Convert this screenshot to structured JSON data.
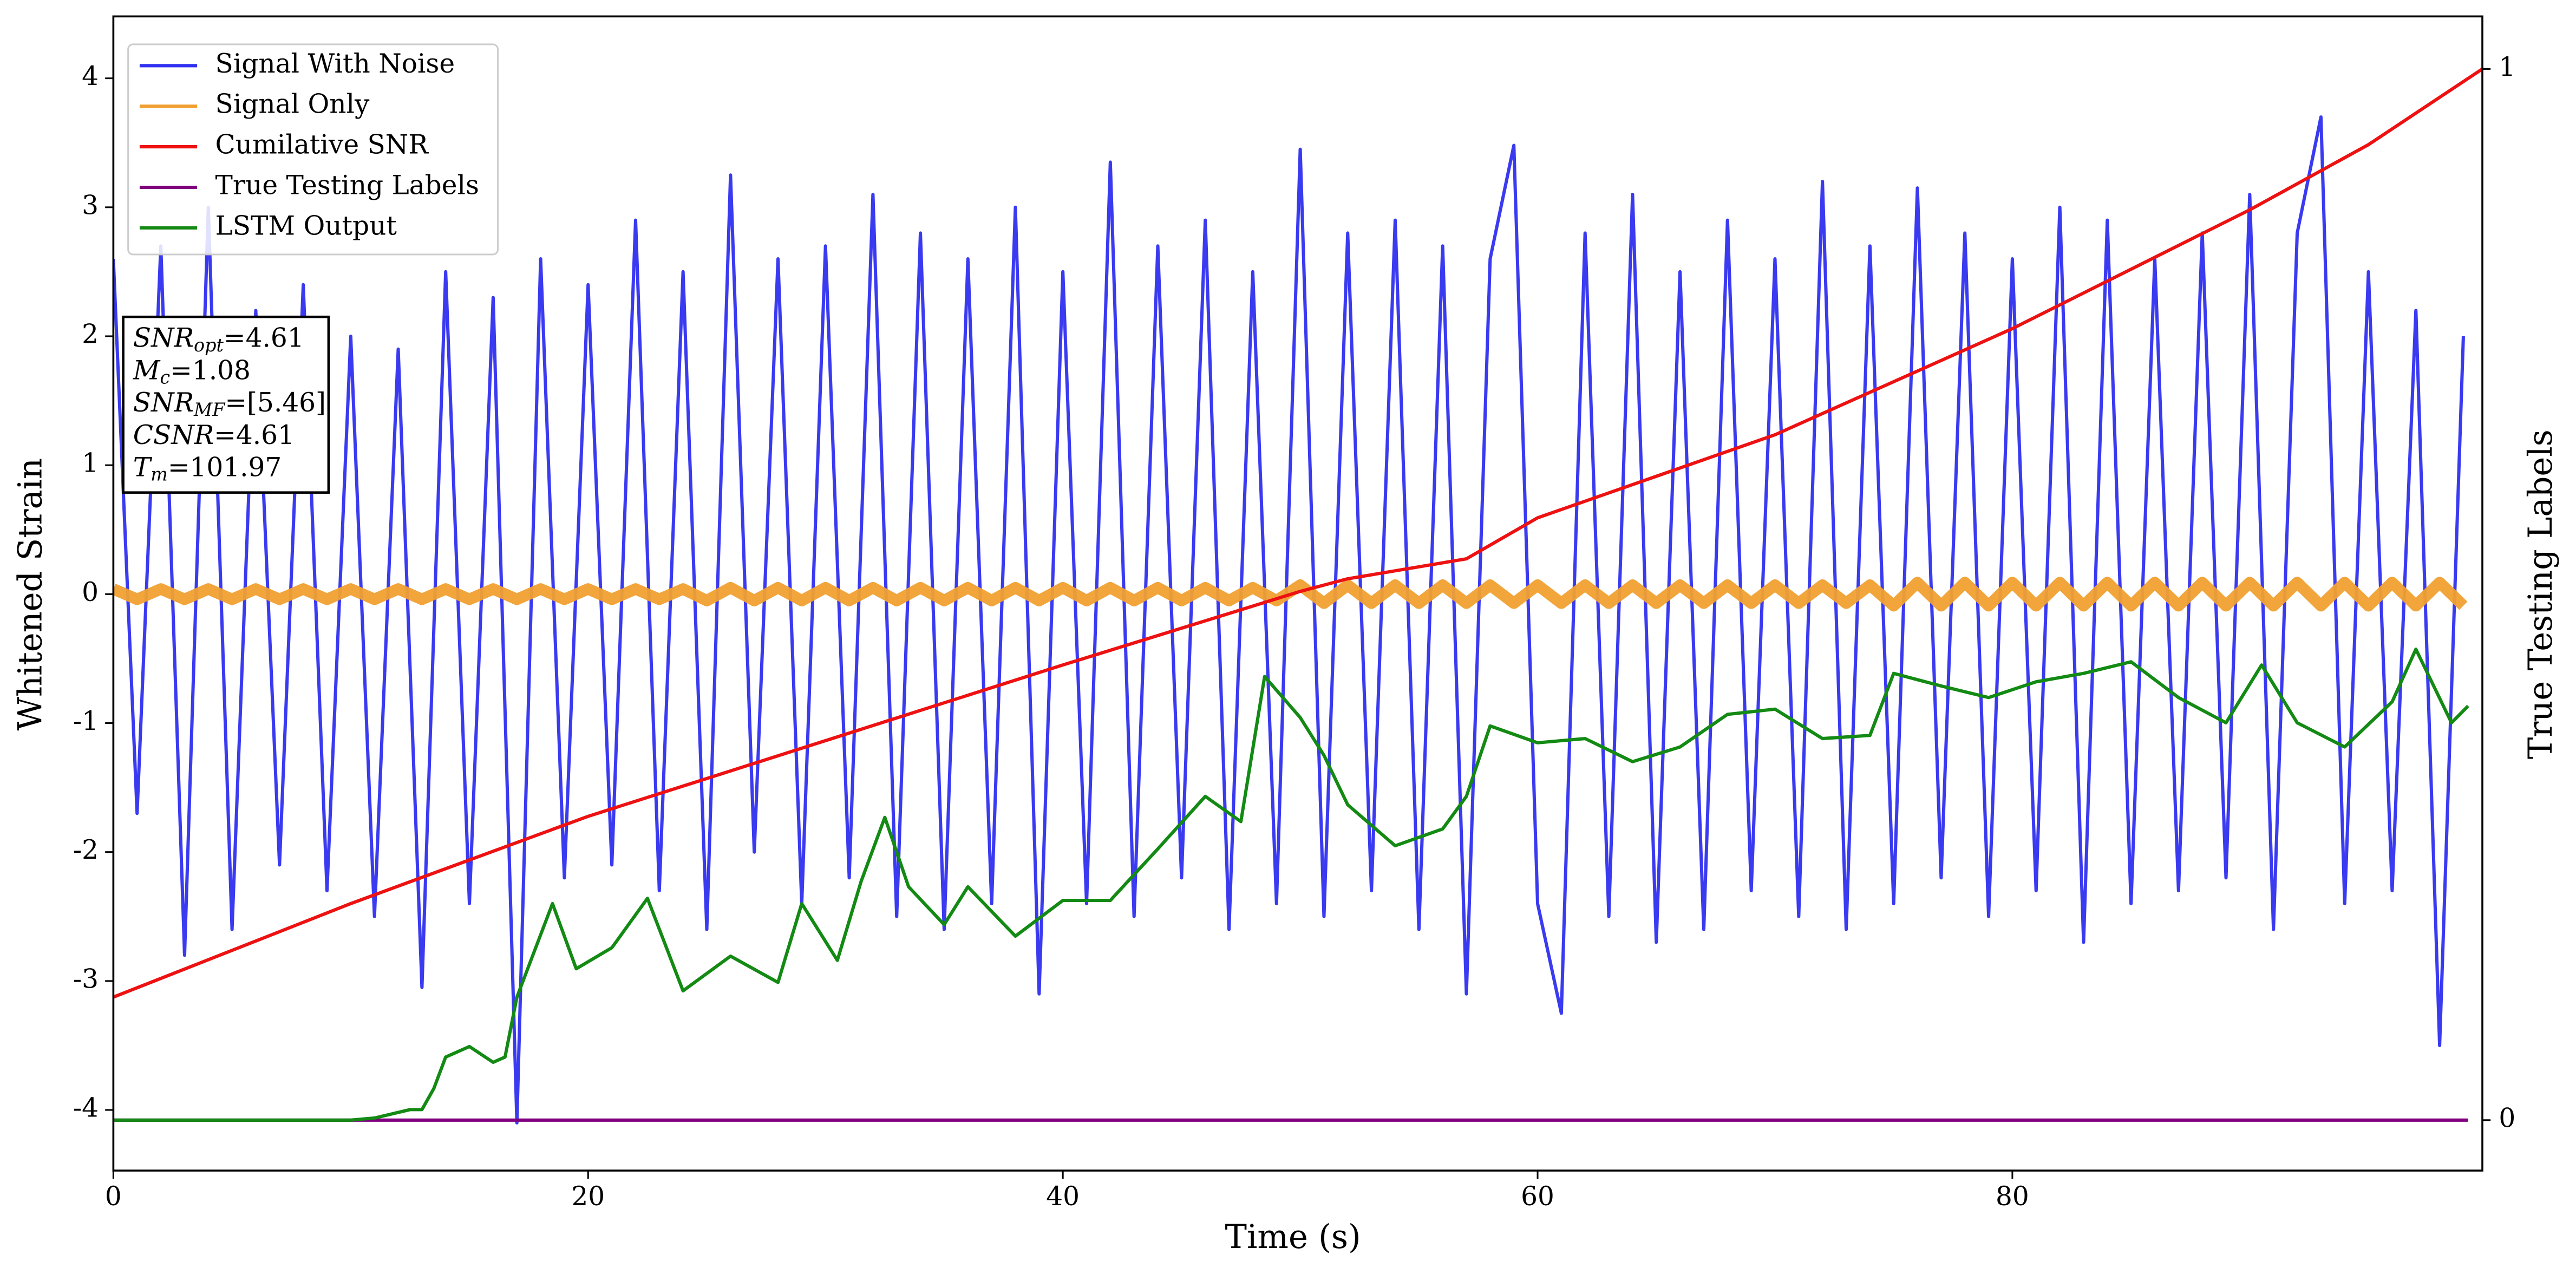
{
  "chart_data": {
    "type": "line",
    "xlabel": "Time (s)",
    "ylabel": "Whitened Strain",
    "y2label": "True Testing Labels",
    "xlim": [
      0,
      99.8
    ],
    "ylim": [
      -4.47,
      4.48
    ],
    "y2lim": [
      -0.048,
      1.05
    ],
    "xticks": [
      0,
      20,
      40,
      60,
      80
    ],
    "yticks": [
      -4,
      -3,
      -2,
      -1,
      0,
      1,
      2,
      3,
      4
    ],
    "y2ticks": [
      0,
      1
    ],
    "legend": "upper left",
    "x": [
      0,
      1,
      2,
      3,
      4,
      5,
      6,
      7,
      8,
      9,
      10,
      11,
      12,
      13,
      14,
      15,
      16,
      17,
      18,
      19,
      20,
      21,
      22,
      23,
      24,
      25,
      26,
      27,
      28,
      29,
      30,
      31,
      32,
      33,
      34,
      35,
      36,
      37,
      38,
      39,
      40,
      41,
      42,
      43,
      44,
      45,
      46,
      47,
      48,
      49,
      50,
      51,
      52,
      53,
      54,
      55,
      56,
      57,
      58,
      59,
      60,
      61,
      62,
      63,
      64,
      65,
      66,
      67,
      68,
      69,
      70,
      71,
      72,
      73,
      74,
      75,
      76,
      77,
      78,
      79,
      80,
      81,
      82,
      83,
      84,
      85,
      86,
      87,
      88,
      89,
      90,
      91,
      92,
      93,
      94,
      95,
      96,
      97,
      98,
      99
    ],
    "series": [
      {
        "name": "Signal With Noise",
        "color": "#2f2ff0",
        "values": [
          2.6,
          -1.7,
          2.7,
          -2.8,
          3.0,
          -2.6,
          2.2,
          -2.1,
          2.4,
          -2.3,
          2.0,
          -2.5,
          1.9,
          -3.05,
          2.5,
          -2.4,
          2.3,
          -4.1,
          2.6,
          -2.2,
          2.4,
          -2.1,
          2.9,
          -2.3,
          2.5,
          -2.6,
          3.25,
          -2.0,
          2.6,
          -2.4,
          2.7,
          -2.2,
          3.1,
          -2.5,
          2.8,
          -2.6,
          2.6,
          -2.4,
          3.0,
          -3.1,
          2.5,
          -2.4,
          3.35,
          -2.5,
          2.7,
          -2.2,
          2.9,
          -2.6,
          2.5,
          -2.4,
          3.45,
          -2.5,
          2.8,
          -2.3,
          2.9,
          -2.6,
          2.7,
          -3.1,
          2.6,
          3.48,
          -2.4,
          -3.25,
          2.8,
          -2.5,
          3.1,
          -2.7,
          2.5,
          -2.6,
          2.9,
          -2.3,
          2.6,
          -2.5,
          3.2,
          -2.6,
          2.7,
          -2.4,
          3.15,
          -2.2,
          2.8,
          -2.5,
          2.6,
          -2.3,
          3.0,
          -2.7,
          2.9,
          -2.4,
          2.6,
          -2.3,
          2.8,
          -2.2,
          3.1,
          -2.6,
          2.8,
          3.7,
          -2.4,
          2.5,
          -2.3,
          2.2,
          -3.5,
          2.0
        ]
      },
      {
        "name": "Signal Only",
        "color": "#f0a030",
        "values": [
          0.04,
          -0.04,
          0.04,
          -0.04,
          0.04,
          -0.04,
          0.04,
          -0.04,
          0.04,
          -0.04,
          0.04,
          -0.04,
          0.04,
          -0.04,
          0.04,
          -0.04,
          0.04,
          -0.04,
          0.04,
          -0.04,
          0.04,
          -0.04,
          0.04,
          -0.04,
          0.04,
          -0.05,
          0.05,
          -0.05,
          0.05,
          -0.05,
          0.05,
          -0.05,
          0.05,
          -0.05,
          0.05,
          -0.05,
          0.05,
          -0.05,
          0.05,
          -0.05,
          0.05,
          -0.05,
          0.05,
          -0.05,
          0.05,
          -0.05,
          0.05,
          -0.05,
          0.05,
          -0.05,
          0.07,
          -0.07,
          0.07,
          -0.07,
          0.07,
          -0.07,
          0.07,
          -0.07,
          0.07,
          -0.07,
          0.07,
          -0.07,
          0.07,
          -0.07,
          0.07,
          -0.07,
          0.07,
          -0.07,
          0.07,
          -0.07,
          0.07,
          -0.07,
          0.07,
          -0.07,
          0.07,
          -0.09,
          0.09,
          -0.09,
          0.09,
          -0.09,
          0.09,
          -0.09,
          0.09,
          -0.09,
          0.09,
          -0.09,
          0.09,
          -0.09,
          0.09,
          -0.09,
          0.09,
          -0.09,
          0.09,
          -0.09,
          0.09,
          -0.09,
          0.09,
          -0.09,
          0.09,
          -0.09
        ]
      },
      {
        "name": "Cumilative SNR",
        "color": "#ee1111",
        "axis": "y2",
        "x": [
          0,
          10,
          20,
          40,
          50,
          52,
          57,
          60,
          70,
          80,
          90,
          95,
          99.8
        ],
        "values": [
          0.117,
          0.206,
          0.289,
          0.433,
          0.503,
          0.515,
          0.534,
          0.573,
          0.652,
          0.753,
          0.866,
          0.928,
          1.0
        ]
      },
      {
        "name": "True Testing Labels",
        "color": "#800080",
        "axis": "y2",
        "x": [
          0,
          99.2
        ],
        "values": [
          0,
          0
        ]
      },
      {
        "name": "LSTM Output",
        "color": "#138a13",
        "axis": "y2",
        "x": [
          0,
          10,
          11,
          12.5,
          13,
          13.5,
          14,
          15,
          16,
          16.5,
          17,
          18.5,
          19.5,
          21,
          22.5,
          24,
          26,
          28,
          29,
          30.5,
          31.5,
          32.5,
          33.5,
          35,
          36,
          38,
          40,
          42,
          44,
          46,
          47.5,
          48.5,
          50,
          51,
          52,
          54,
          56,
          57,
          58,
          60,
          62,
          64,
          66,
          68,
          70,
          72,
          74,
          75,
          77,
          79,
          81,
          83,
          85,
          87,
          89,
          90.5,
          92,
          94,
          96,
          97,
          98.5,
          99.2
        ],
        "values": [
          0,
          0,
          0.002,
          0.01,
          0.01,
          0.03,
          0.06,
          0.07,
          0.055,
          0.06,
          0.117,
          0.206,
          0.144,
          0.164,
          0.211,
          0.123,
          0.156,
          0.131,
          0.206,
          0.152,
          0.227,
          0.288,
          0.222,
          0.186,
          0.222,
          0.175,
          0.209,
          0.209,
          0.258,
          0.308,
          0.284,
          0.422,
          0.383,
          0.347,
          0.3,
          0.261,
          0.277,
          0.308,
          0.375,
          0.359,
          0.363,
          0.341,
          0.355,
          0.386,
          0.391,
          0.363,
          0.366,
          0.425,
          0.413,
          0.402,
          0.417,
          0.425,
          0.436,
          0.402,
          0.378,
          0.433,
          0.378,
          0.355,
          0.398,
          0.448,
          0.378,
          0.394
        ]
      }
    ],
    "annotation": [
      {
        "var": "SNR",
        "sub": "opt",
        "text": "=4.61"
      },
      {
        "var": "M",
        "sub": "c",
        "text": "=1.08"
      },
      {
        "var": "SNR",
        "sub": "MF",
        "text": "=[5.46]"
      },
      {
        "var": "CSNR",
        "text": "=4.61"
      },
      {
        "var": "T",
        "sub": "m",
        "text": "=101.97"
      }
    ]
  }
}
